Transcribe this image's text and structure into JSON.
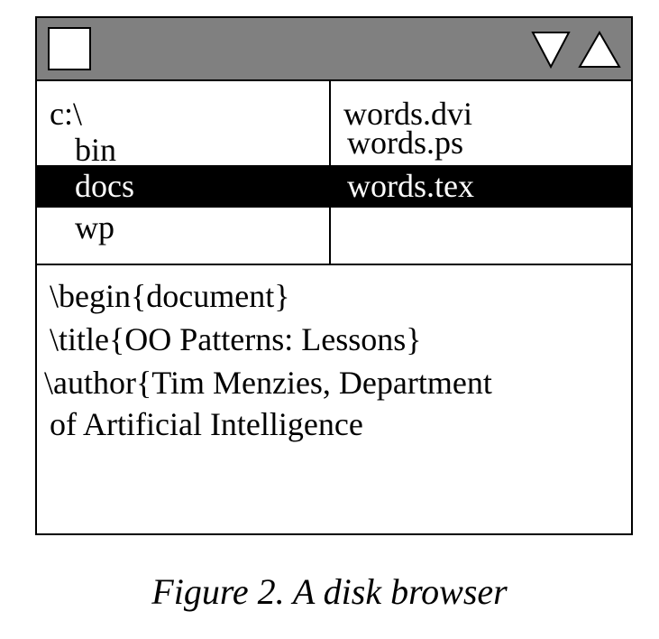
{
  "window": {
    "close_box_icon": "square-icon",
    "scroll_down_icon": "triangle-down-icon",
    "scroll_up_icon": "triangle-up-icon"
  },
  "directories": {
    "items": [
      {
        "label": "c:\\",
        "selected": false
      },
      {
        "label": "bin",
        "selected": false
      },
      {
        "label": "docs",
        "selected": true
      },
      {
        "label": "wp",
        "selected": false
      }
    ]
  },
  "files": {
    "items": [
      {
        "label": "words.dvi",
        "selected": false
      },
      {
        "label": "words.ps",
        "selected": false
      },
      {
        "label": "words.tex",
        "selected": true
      }
    ]
  },
  "editor": {
    "lines": [
      "\\begin{document}",
      "\\title{OO Patterns: Lessons}",
      "\\author{Tim Menzies, Department",
      "of Artificial Intelligence"
    ]
  },
  "caption": "Figure 2. A disk browser"
}
